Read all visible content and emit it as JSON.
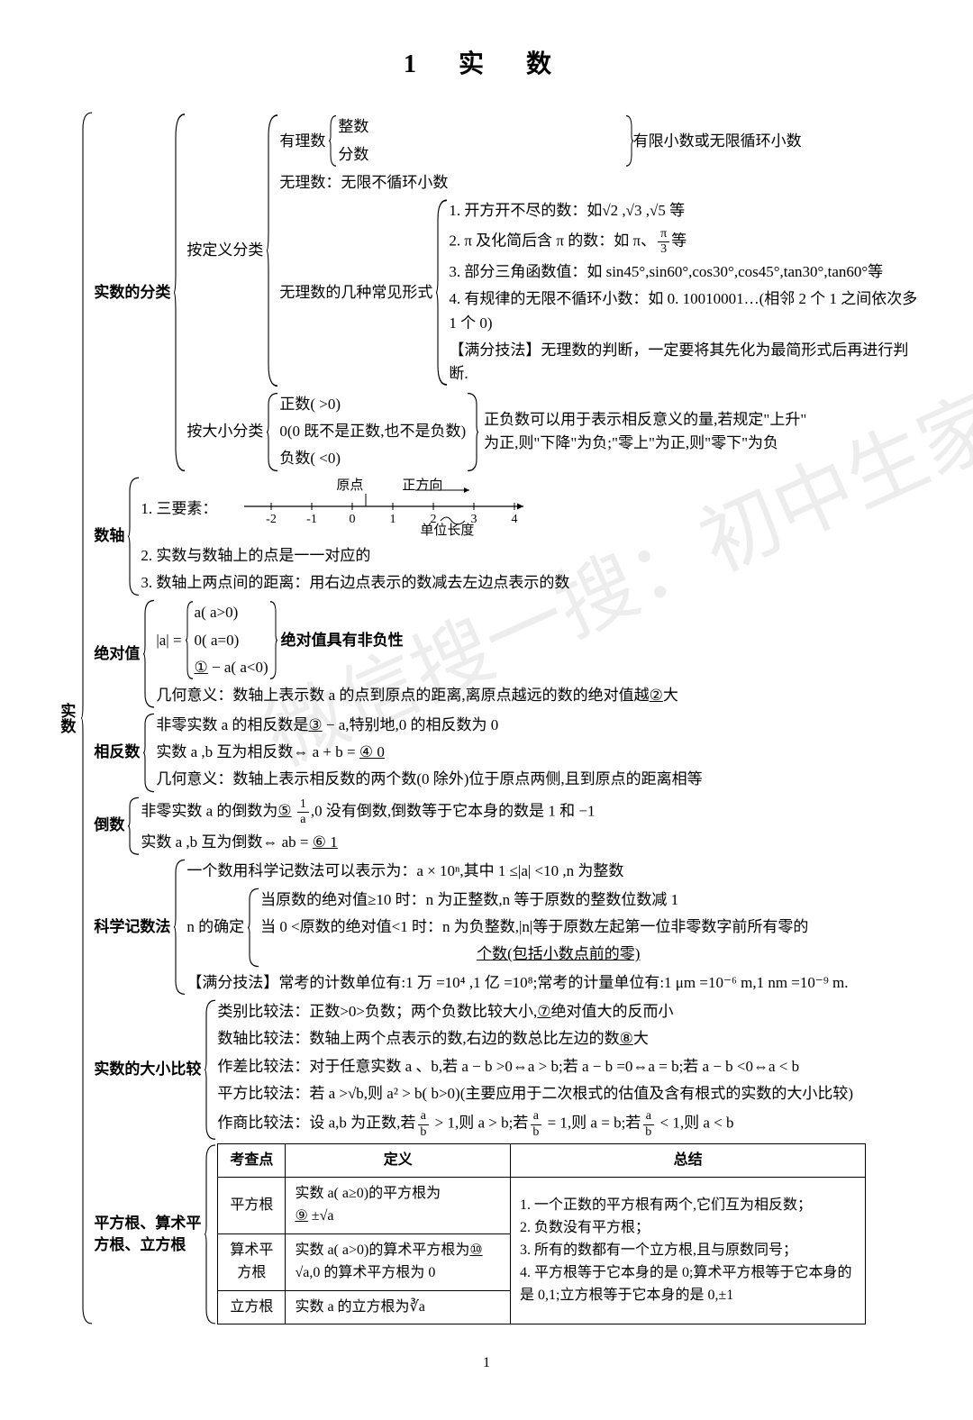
{
  "page_number": "1",
  "title": "1  实  数",
  "watermark": "微信搜一搜：初中生家长",
  "root_label": "实数",
  "sections": {
    "classification": {
      "label": "实数的分类",
      "by_def": {
        "label": "按定义分类",
        "rational": {
          "label": "有理数",
          "int": "整数",
          "frac": "分数",
          "desc": "有限小数或无限循环小数"
        },
        "irrational_simple": "无理数：无限不循环小数",
        "irrational_forms": {
          "label": "无理数的几种常见形式",
          "i1": "1. 开方开不尽的数：如√2 ,√3 ,√5 等",
          "i2_a": "2. π 及化简后含 π 的数：如 π、",
          "i2_frac_num": "π",
          "i2_frac_den": "3",
          "i2_b": "等",
          "i3": "3. 部分三角函数值：如 sin45°,sin60°,cos30°,cos45°,tan30°,tan60°等",
          "i4": "4. 有规律的无限不循环小数：如 0. 10010001…(相邻 2 个 1 之间依次多 1 个 0)",
          "tip": "【满分技法】无理数的判断，一定要将其先化为最简形式后再进行判断."
        }
      },
      "by_size": {
        "label": "按大小分类",
        "pos": "正数( >0)",
        "zero": "0(0 既不是正数,也不是负数)",
        "neg": "负数( <0)",
        "note1": "正负数可以用于表示相反意义的量,若规定\"上升\"",
        "note2": "为正,则\"下降\"为负;\"零上\"为正,则\"零下\"为负"
      }
    },
    "number_line": {
      "label": "数轴",
      "elem_label": "1. 三要素：",
      "origin_label": "原点",
      "direction_label": "正方向",
      "unit_label": "单位长度",
      "ticks": [
        "-2",
        "-1",
        "0",
        "1",
        "2",
        "3",
        "4"
      ],
      "p2": "2. 实数与数轴上的点是一一对应的",
      "p3": "3. 数轴上两点间的距离：用右边点表示的数减去左边点表示的数"
    },
    "abs": {
      "label": "绝对值",
      "lhs": "|a| =",
      "c1": "a( a>0)",
      "c2": "0( a=0)",
      "c3_blank": "①",
      "c3_rest": " − a( a<0)",
      "prop": "绝对值具有非负性",
      "geom_a": "几何意义：数轴上表示数 a 的点到原点的距离,离原点越远的数的绝对值越",
      "geom_blank": "②",
      "geom_b": "大"
    },
    "opposite": {
      "label": "相反数",
      "l1_a": "非零实数 a 的相反数是",
      "l1_blank": "③",
      "l1_b": " − a,特别地,0 的相反数为 0",
      "l2_a": "实数 a ,b 互为相反数⇔ a + b = ",
      "l2_blank": "④ 0",
      "l3": "几何意义：数轴上表示相反数的两个数(0 除外)位于原点两侧,且到原点的距离相等"
    },
    "reciprocal": {
      "label": "倒数",
      "l1_a": "非零实数 a 的倒数为",
      "l1_blank": "⑤",
      "l1_frac_num": "1",
      "l1_frac_den": "a",
      "l1_b": ",0 没有倒数,倒数等于它本身的数是 1 和 −1",
      "l2_a": "实数 a ,b 互为倒数⇔ ab = ",
      "l2_blank": "⑥ 1"
    },
    "scientific": {
      "label": "科学记数法",
      "l1": "一个数用科学记数法可以表示为：a × 10ⁿ,其中 1 ≤|a| <10 ,n 为整数",
      "ndet": {
        "label": "n 的确定",
        "a": "当原数的绝对值≥10 时：n 为正整数,n 等于原数的整数位数减 1",
        "b1": "当 0 <原数的绝对值<1 时：n 为负整数,|n|等于原数左起第一位非零数字前所有零的",
        "b2": "个数(包括小数点前的零)"
      },
      "tip": "【满分技法】常考的计数单位有:1 万 =10⁴ ,1 亿 =10⁸;常考的计量单位有:1 μm =10⁻⁶ m,1 nm =10⁻⁹ m."
    },
    "compare": {
      "label": "实数的大小比较",
      "l1_a": "类别比较法：正数>0>负数；两个负数比较大小,",
      "l1_blank": "⑦",
      "l1_b": "绝对值大的反而小",
      "l2_a": "数轴比较法：数轴上两个点表示的数,右边的数总比左边的数",
      "l2_blank": "⑧",
      "l2_b": "大",
      "l3": "作差比较法：对于任意实数 a 、b,若 a − b >0⇔a > b;若 a − b =0⇔a = b;若 a − b <0⇔a < b",
      "l4": "平方比较法：若 a >√b,则 a² > b( b>0)(主要应用于二次根式的估值及含有根式的实数的大小比较)",
      "l5_a": "作商比较法：设 a,b 为正数,若",
      "frac_num": "a",
      "frac_den": "b",
      "l5_b": " > 1,则 a > b;若",
      "l5_c": " = 1,则 a = b;若",
      "l5_d": " < 1,则 a < b"
    },
    "roots": {
      "label_a": "平方根、算术平",
      "label_b": "方根、立方根",
      "headers": {
        "c1": "考查点",
        "c2": "定义",
        "c3": "总结"
      },
      "r1": {
        "name": "平方根",
        "def_a": "实数 a( a≥0)的平方根为",
        "def_blank": "⑨",
        "def_b": " ±√a"
      },
      "r2": {
        "name": "算术平方根",
        "def_a": "实数 a( a>0)的算术平方根为",
        "def_blank": "⑩",
        "def_b": "√a,0 的算术平方根为 0"
      },
      "r3": {
        "name": "立方根",
        "def": "实数 a 的立方根为∛a"
      },
      "summary": {
        "s1": "1. 一个正数的平方根有两个,它们互为相反数；",
        "s2": "2. 负数没有平方根；",
        "s3": "3. 所有的数都有一个立方根,且与原数同号；",
        "s4": "4. 平方根等于它本身的是 0;算术平方根等于它本身的是 0,1;立方根等于它本身的是 0,±1"
      }
    }
  }
}
